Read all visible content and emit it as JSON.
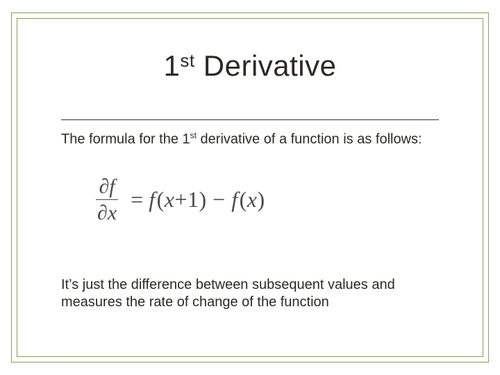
{
  "slide": {
    "title_main": "1",
    "title_sup": "st",
    "title_rest": " Derivative",
    "intro_a": "The formula for the 1",
    "intro_sup": "st",
    "intro_b": " derivative of a function is as follows:",
    "formula": {
      "partial_top": "∂f",
      "partial_bottom": "∂x",
      "equals": "=",
      "rhs_f1": "f",
      "rhs_open1": "(",
      "rhs_x1": "x",
      "rhs_plus": "+",
      "rhs_one": "1",
      "rhs_close1": ")",
      "rhs_minus": " − ",
      "rhs_f2": "f",
      "rhs_open2": "(",
      "rhs_x2": "x",
      "rhs_close2": ")"
    },
    "outro": "It’s just the difference between subsequent values and measures the rate of change of the function"
  },
  "style": {
    "border_color": "#8a9a5b",
    "rule_color": "#333333",
    "text_color": "#2a2a28",
    "formula_color": "#4a4a4a",
    "background": "#ffffff",
    "title_fontsize": 42,
    "body_fontsize": 20,
    "formula_fontsize": 32
  }
}
